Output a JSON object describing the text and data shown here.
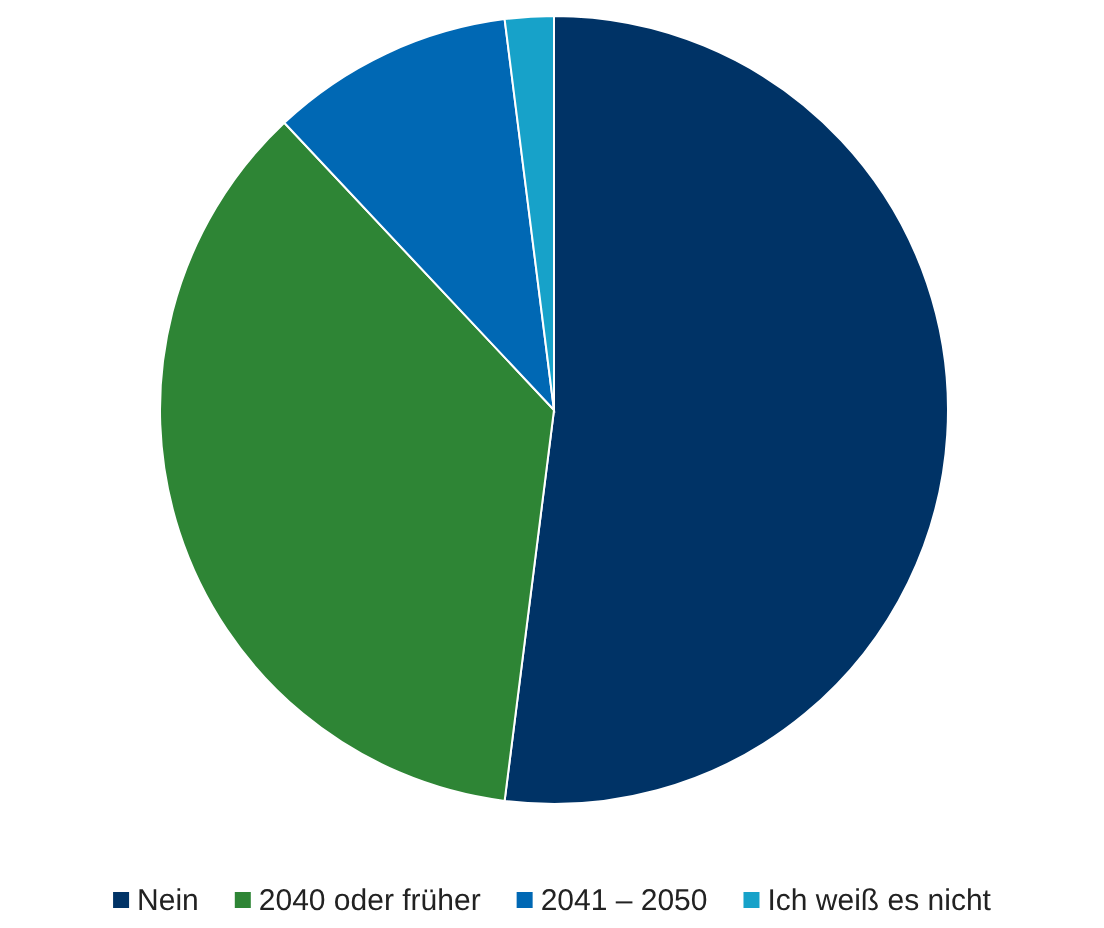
{
  "chart_data": {
    "type": "pie",
    "categories": [
      "Nein",
      "2040 oder früher",
      "2041 – 2050",
      "Ich weiß es nicht"
    ],
    "values": [
      52,
      36,
      10,
      2
    ],
    "colors": [
      "#003366",
      "#2e8535",
      "#0068b4",
      "#17a2c9"
    ],
    "legend": "bottom"
  }
}
